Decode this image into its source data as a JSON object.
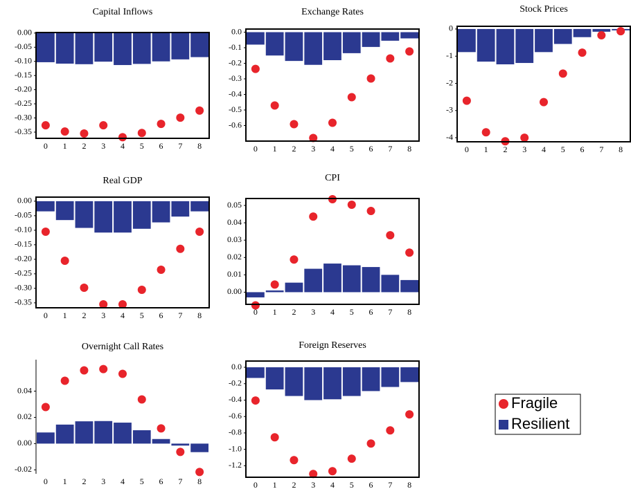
{
  "chart_data": [
    {
      "type": "combo",
      "title": "Capital Inflows",
      "frame": true,
      "categories": [
        "0",
        "1",
        "2",
        "3",
        "4",
        "5",
        "6",
        "7",
        "8"
      ],
      "ylim": [
        -0.372,
        0.002
      ],
      "yticks": [
        {
          "value": 0,
          "label": "0.00"
        },
        -0.05,
        {
          "value": -0.1,
          "label": "-0.10"
        },
        -0.15,
        {
          "value": -0.2,
          "label": "-0.20"
        },
        -0.25,
        {
          "value": -0.3,
          "label": "-0.30"
        },
        -0.35
      ],
      "series": [
        {
          "name": "Fragile",
          "type": "scatter",
          "color": "#e8242b",
          "values": [
            -0.326,
            -0.348,
            -0.355,
            -0.326,
            -0.368,
            -0.353,
            -0.321,
            -0.299,
            -0.274
          ]
        },
        {
          "name": "Resilient",
          "type": "bar",
          "color": "#2b3990",
          "values": [
            -0.103,
            -0.108,
            -0.11,
            -0.101,
            -0.113,
            -0.109,
            -0.1,
            -0.093,
            -0.085
          ]
        }
      ]
    },
    {
      "type": "combo",
      "title": "Exchange Rates",
      "frame": true,
      "categories": [
        "0",
        "1",
        "2",
        "3",
        "4",
        "5",
        "6",
        "7",
        "8"
      ],
      "ylim": [
        -0.7,
        0.02
      ],
      "yticks": [
        {
          "value": 0,
          "label": "0.0"
        },
        -0.1,
        -0.2,
        -0.3,
        -0.4,
        -0.5,
        -0.6
      ],
      "series": [
        {
          "type": "scatter",
          "color": "#e8242b",
          "values": [
            -0.236,
            -0.471,
            -0.591,
            -0.68,
            -0.582,
            -0.418,
            -0.298,
            -0.169,
            -0.124
          ]
        },
        {
          "type": "bar",
          "color": "#2b3990",
          "values": [
            -0.08,
            -0.15,
            -0.185,
            -0.21,
            -0.18,
            -0.135,
            -0.095,
            -0.055,
            -0.04
          ]
        }
      ]
    },
    {
      "type": "combo",
      "title": "Stock Prices",
      "frame": true,
      "categories": [
        "0",
        "1",
        "2",
        "3",
        "4",
        "5",
        "6",
        "7",
        "8"
      ],
      "ylim": [
        -4.15,
        0.1
      ],
      "yticks": [
        0,
        -1,
        -2,
        -3,
        -4
      ],
      "series": [
        {
          "type": "scatter",
          "color": "#e8242b",
          "values": [
            -2.64,
            -3.8,
            -4.13,
            -4.0,
            -2.69,
            -1.64,
            -0.87,
            -0.23,
            -0.08
          ]
        },
        {
          "type": "bar",
          "color": "#2b3990",
          "values": [
            -0.85,
            -1.2,
            -1.3,
            -1.25,
            -0.85,
            -0.55,
            -0.3,
            -0.1,
            -0.05
          ]
        }
      ]
    },
    {
      "type": "combo",
      "title": "Real GDP",
      "frame": true,
      "categories": [
        "0",
        "1",
        "2",
        "3",
        "4",
        "5",
        "6",
        "7",
        "8"
      ],
      "ylim": [
        -0.367,
        0.014
      ],
      "yticks": [
        {
          "value": 0,
          "label": "0.00"
        },
        -0.05,
        {
          "value": -0.1,
          "label": "-0.10"
        },
        -0.15,
        {
          "value": -0.2,
          "label": "-0.20"
        },
        -0.25,
        {
          "value": -0.3,
          "label": "-0.30"
        },
        -0.35
      ],
      "series": [
        {
          "type": "scatter",
          "color": "#e8242b",
          "values": [
            -0.105,
            -0.205,
            -0.298,
            -0.355,
            -0.355,
            -0.305,
            -0.236,
            -0.164,
            -0.105
          ]
        },
        {
          "type": "bar",
          "color": "#2b3990",
          "values": [
            -0.035,
            -0.065,
            -0.092,
            -0.108,
            -0.108,
            -0.095,
            -0.073,
            -0.053,
            -0.035
          ]
        }
      ]
    },
    {
      "type": "combo",
      "title": "CPI",
      "frame": true,
      "categories": [
        "0",
        "1",
        "2",
        "3",
        "4",
        "5",
        "6",
        "7",
        "8"
      ],
      "ylim": [
        -0.007,
        0.054
      ],
      "yticks": [
        {
          "value": 0,
          "label": "0.00"
        },
        0.01,
        0.02,
        0.03,
        0.04,
        0.05
      ],
      "series": [
        {
          "type": "scatter",
          "color": "#e8242b",
          "values": [
            -0.0076,
            0.0044,
            0.0188,
            0.0436,
            0.0536,
            0.0504,
            0.0468,
            0.0328,
            0.0228
          ]
        },
        {
          "type": "bar",
          "color": "#2b3990",
          "values": [
            -0.003,
            0.001,
            0.0055,
            0.0135,
            0.0165,
            0.0155,
            0.0145,
            0.01,
            0.007
          ]
        }
      ]
    },
    {
      "type": "combo",
      "title": "Overnight Call Rates",
      "frame": false,
      "categories": [
        "0",
        "1",
        "2",
        "3",
        "4",
        "5",
        "6",
        "7",
        "8"
      ],
      "ylim": [
        -0.023,
        0.064
      ],
      "yticks": [
        -0.02,
        {
          "value": 0,
          "label": "0.00"
        },
        0.02,
        0.04
      ],
      "series": [
        {
          "type": "scatter",
          "color": "#e8242b",
          "values": [
            0.0279,
            0.0479,
            0.0558,
            0.0568,
            0.0532,
            0.0337,
            0.0116,
            -0.0063,
            -0.0216
          ]
        },
        {
          "type": "bar",
          "color": "#2b3990",
          "values": [
            0.0085,
            0.0145,
            0.017,
            0.0172,
            0.016,
            0.0102,
            0.0035,
            -0.0015,
            -0.0065
          ]
        }
      ]
    },
    {
      "type": "combo",
      "title": "Foreign Reserves",
      "frame": true,
      "categories": [
        "0",
        "1",
        "2",
        "3",
        "4",
        "5",
        "6",
        "7",
        "8"
      ],
      "ylim": [
        -1.34,
        0.076
      ],
      "yticks": [
        {
          "value": 0,
          "label": "0.0"
        },
        -0.2,
        -0.4,
        -0.6,
        -0.8,
        {
          "value": -1,
          "label": "-1.0"
        },
        -1.2
      ],
      "series": [
        {
          "type": "scatter",
          "color": "#e8242b",
          "values": [
            -0.405,
            -0.853,
            -1.131,
            -1.3,
            -1.266,
            -1.114,
            -0.929,
            -0.769,
            -0.574
          ]
        },
        {
          "type": "bar",
          "color": "#2b3990",
          "values": [
            -0.13,
            -0.27,
            -0.35,
            -0.4,
            -0.39,
            -0.35,
            -0.29,
            -0.24,
            -0.18
          ]
        }
      ]
    }
  ]
}
